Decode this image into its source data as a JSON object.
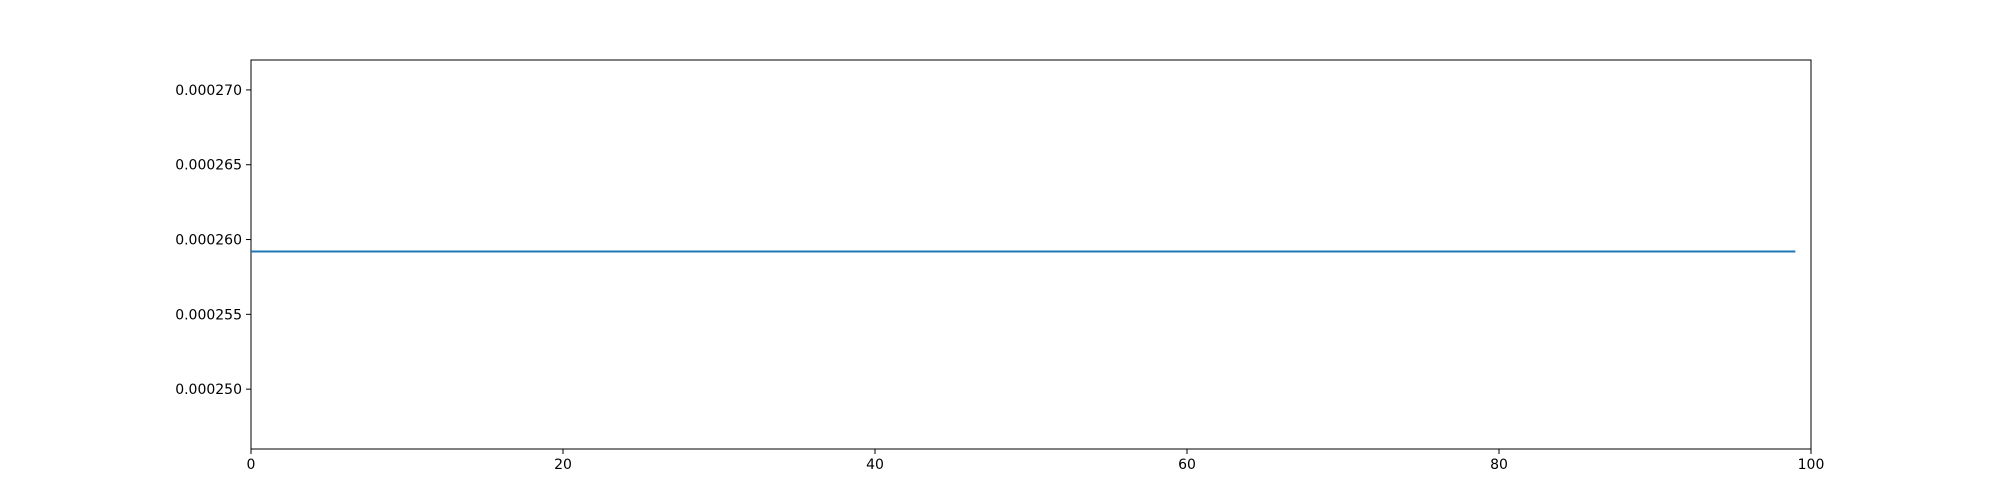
{
  "chart_data": {
    "type": "line",
    "title": "",
    "xlabel": "",
    "ylabel": "",
    "xlim": [
      0,
      100
    ],
    "ylim": [
      0.000246,
      0.000272
    ],
    "grid": false,
    "legend": "none",
    "x_ticks": [
      {
        "value": 0,
        "label": "0"
      },
      {
        "value": 20,
        "label": "20"
      },
      {
        "value": 40,
        "label": "40"
      },
      {
        "value": 60,
        "label": "60"
      },
      {
        "value": 80,
        "label": "80"
      },
      {
        "value": 100,
        "label": "100"
      }
    ],
    "y_ticks": [
      {
        "value": 0.00025,
        "label": "0.000250"
      },
      {
        "value": 0.000255,
        "label": "0.000255"
      },
      {
        "value": 0.00026,
        "label": "0.000260"
      },
      {
        "value": 0.000265,
        "label": "0.000265"
      },
      {
        "value": 0.00027,
        "label": "0.000270"
      }
    ],
    "series": [
      {
        "color": "#1f77b4",
        "x": [
          0,
          99
        ],
        "y": [
          0.0002592,
          0.0002592
        ]
      }
    ]
  }
}
